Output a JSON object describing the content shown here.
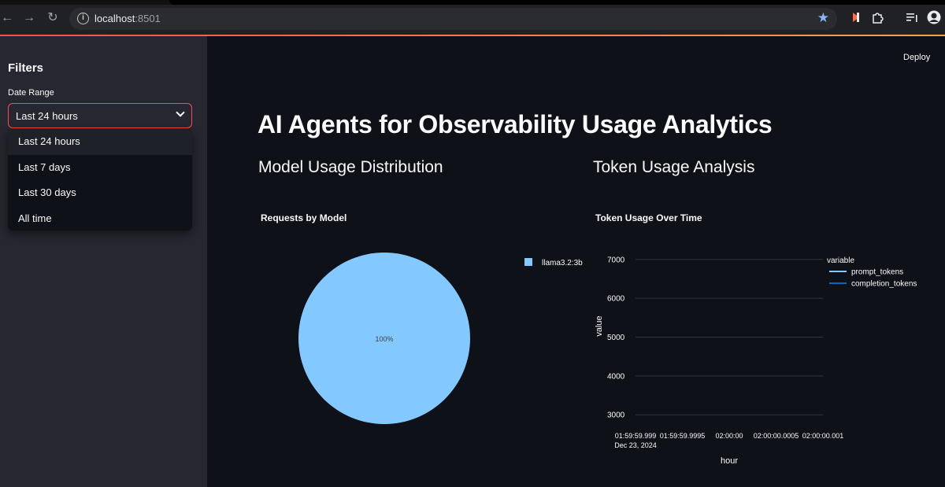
{
  "browser": {
    "url_host": "localhost",
    "url_port": ":8501"
  },
  "header": {
    "deploy_label": "Deploy"
  },
  "sidebar": {
    "title": "Filters",
    "date_range_label": "Date Range",
    "selected": "Last 24 hours",
    "options": [
      "Last 24 hours",
      "Last 7 days",
      "Last 30 days",
      "All time"
    ]
  },
  "main": {
    "title": "AI Agents for Observability Usage Analytics",
    "section_left": "Model Usage Distribution",
    "section_right": "Token Usage Analysis"
  },
  "chart_data": [
    {
      "type": "pie",
      "title": "Requests by Model",
      "labels": [
        "llama3.2:3b"
      ],
      "values": [
        100
      ],
      "slice_label": "100%",
      "colors": [
        "#83c9ff"
      ],
      "legend": "right"
    },
    {
      "type": "line",
      "title": "Token Usage Over Time",
      "xlabel": "hour",
      "ylabel": "value",
      "x_ticks": [
        "01:59:59.999",
        "01:59:59.9995",
        "02:00:00",
        "02:00:00.0005",
        "02:00:00.001"
      ],
      "x_tick_sub": "Dec 23, 2024",
      "y_ticks": [
        3000,
        4000,
        5000,
        6000,
        7000
      ],
      "ylim": [
        2700,
        7300
      ],
      "legend_title": "variable",
      "series": [
        {
          "name": "prompt_tokens",
          "color": "#83c9ff",
          "values": []
        },
        {
          "name": "completion_tokens",
          "color": "#0068c9",
          "values": []
        }
      ],
      "grid": true,
      "legend": "top-right"
    }
  ]
}
